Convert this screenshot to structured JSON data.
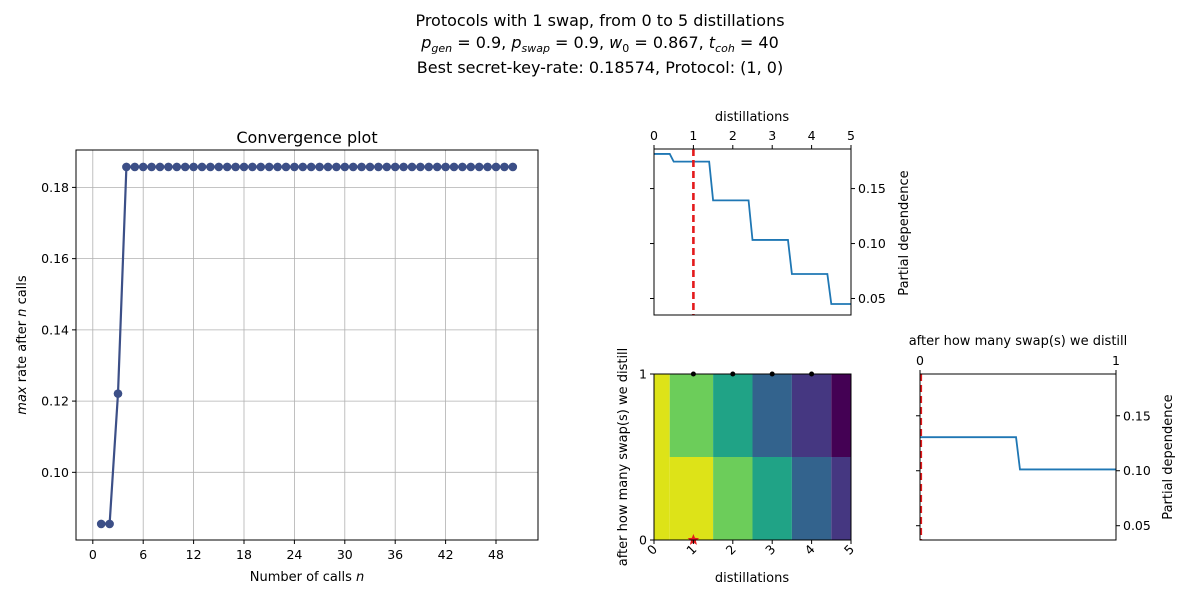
{
  "figure": {
    "title_line1": "Protocols with 1 swap, from 0 to 5 distillations",
    "title_line2": "p_gen = 0.9, p_swap = 0.9, w_0 = 0.867, t_coh = 40",
    "title_line3": "Best secret-key-rate: 0.18574, Protocol: (1, 0)"
  },
  "colors": {
    "convergence_line": "#3c4f87",
    "partial_dependence_line": "#1f77b4",
    "best_marker": "#e31a1c",
    "grid": "#b0b0b0"
  },
  "chart_data": [
    {
      "type": "line",
      "title": "Convergence plot",
      "xlabel": "Number of calls n",
      "ylabel": "max rate after n calls",
      "xlim": [
        -2,
        53
      ],
      "ylim": [
        0.081,
        0.1905
      ],
      "xticks": [
        0,
        6,
        12,
        18,
        24,
        30,
        36,
        42,
        48
      ],
      "yticks": [
        0.1,
        0.12,
        0.14,
        0.16,
        0.18
      ],
      "ytick_labels": [
        "0.10",
        "0.12",
        "0.14",
        "0.16",
        "0.18"
      ],
      "grid": true,
      "x": [
        1,
        2,
        3,
        4,
        5,
        6,
        7,
        8,
        9,
        10,
        11,
        12,
        13,
        14,
        15,
        16,
        17,
        18,
        19,
        20,
        21,
        22,
        23,
        24,
        25,
        26,
        27,
        28,
        29,
        30,
        31,
        32,
        33,
        34,
        35,
        36,
        37,
        38,
        39,
        40,
        41,
        42,
        43,
        44,
        45,
        46,
        47,
        48,
        49,
        50
      ],
      "y": [
        0.0855,
        0.0855,
        0.1221,
        0.18574,
        0.18574,
        0.18574,
        0.18574,
        0.18574,
        0.18574,
        0.18574,
        0.18574,
        0.18574,
        0.18574,
        0.18574,
        0.18574,
        0.18574,
        0.18574,
        0.18574,
        0.18574,
        0.18574,
        0.18574,
        0.18574,
        0.18574,
        0.18574,
        0.18574,
        0.18574,
        0.18574,
        0.18574,
        0.18574,
        0.18574,
        0.18574,
        0.18574,
        0.18574,
        0.18574,
        0.18574,
        0.18574,
        0.18574,
        0.18574,
        0.18574,
        0.18574,
        0.18574,
        0.18574,
        0.18574,
        0.18574,
        0.18574,
        0.18574,
        0.18574,
        0.18574,
        0.18574,
        0.18574
      ]
    },
    {
      "type": "line",
      "xlabel": "distillations",
      "ylabel": "Partial dependence",
      "xlim": [
        0,
        5
      ],
      "ylim": [
        0.035,
        0.186
      ],
      "xticks": [
        0,
        1,
        2,
        3,
        4,
        5
      ],
      "yticks": [
        0.05,
        0.1,
        0.15
      ],
      "ytick_labels": [
        "0.05",
        "0.10",
        "0.15"
      ],
      "best_x": 1,
      "x": [
        0,
        0.4,
        0.5,
        1.4,
        1.5,
        2.4,
        2.5,
        3.4,
        3.5,
        4.4,
        4.5,
        5
      ],
      "y": [
        0.1815,
        0.1815,
        0.1745,
        0.1745,
        0.1393,
        0.1393,
        0.1033,
        0.1033,
        0.0723,
        0.0723,
        0.045,
        0.045
      ]
    },
    {
      "type": "heatmap",
      "xlabel": "distillations",
      "ylabel": "after how many swap(s) we distill",
      "xlim": [
        0,
        5
      ],
      "ylim": [
        0,
        1
      ],
      "xticks": [
        0,
        1,
        2,
        3,
        4,
        5
      ],
      "yticks": [
        0,
        1
      ],
      "best_point": {
        "x": 1,
        "y": 0
      },
      "sample_points": [
        {
          "x": 2,
          "y": 1
        },
        {
          "x": 3,
          "y": 1
        },
        {
          "x": 4,
          "y": 1
        },
        {
          "x": 1,
          "y": 1
        }
      ],
      "cells": [
        {
          "x0": 0,
          "x1": 0.4,
          "y0": 0,
          "y1": 1,
          "color": "#dde318"
        },
        {
          "x0": 0.4,
          "x1": 1.5,
          "y0": 0.5,
          "y1": 1,
          "color": "#6ccd5a"
        },
        {
          "x0": 0.4,
          "x1": 1.5,
          "y0": 0,
          "y1": 0.5,
          "color": "#dde318"
        },
        {
          "x0": 1.5,
          "x1": 2.5,
          "y0": 0.5,
          "y1": 1,
          "color": "#20a386"
        },
        {
          "x0": 1.5,
          "x1": 2.5,
          "y0": 0,
          "y1": 0.5,
          "color": "#6ccd5a"
        },
        {
          "x0": 2.5,
          "x1": 3.5,
          "y0": 0.5,
          "y1": 1,
          "color": "#33638d"
        },
        {
          "x0": 2.5,
          "x1": 3.5,
          "y0": 0,
          "y1": 0.5,
          "color": "#20a386"
        },
        {
          "x0": 3.5,
          "x1": 4.5,
          "y0": 0.5,
          "y1": 1,
          "color": "#453781"
        },
        {
          "x0": 3.5,
          "x1": 4.5,
          "y0": 0,
          "y1": 0.5,
          "color": "#33638d"
        },
        {
          "x0": 4.5,
          "x1": 5,
          "y0": 0.5,
          "y1": 1,
          "color": "#440154"
        },
        {
          "x0": 4.5,
          "x1": 5,
          "y0": 0,
          "y1": 0.5,
          "color": "#453781"
        }
      ]
    },
    {
      "type": "line",
      "title": "after how many swap(s) we distill",
      "ylabel": "Partial dependence",
      "xlim": [
        0,
        1
      ],
      "ylim": [
        0.037,
        0.188
      ],
      "xticks": [
        0,
        1
      ],
      "yticks": [
        0.05,
        0.1,
        0.15
      ],
      "ytick_labels": [
        "0.05",
        "0.10",
        "0.15"
      ],
      "best_x": 0,
      "x": [
        0,
        0.49,
        0.51,
        1
      ],
      "y": [
        0.1305,
        0.1305,
        0.1012,
        0.1012
      ]
    }
  ]
}
